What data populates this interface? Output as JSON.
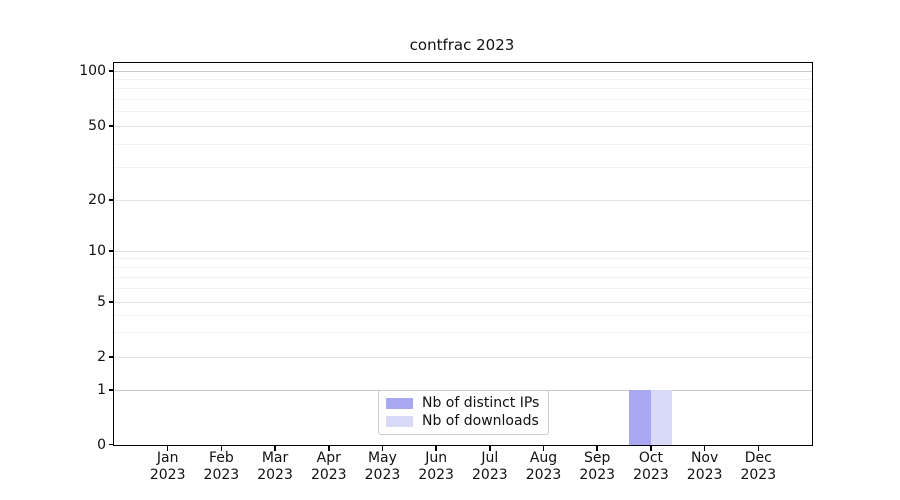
{
  "chart_data": {
    "type": "bar",
    "title": "contfrac 2023",
    "x": {
      "categories": [
        "Jan",
        "Feb",
        "Mar",
        "Apr",
        "May",
        "Jun",
        "Jul",
        "Aug",
        "Sep",
        "Oct",
        "Nov",
        "Dec"
      ],
      "year": "2023"
    },
    "y": {
      "scale": "symlog",
      "major_ticks": [
        0,
        1,
        2,
        5,
        10,
        20,
        50,
        100
      ],
      "minor_gridlines": [
        3,
        4,
        6,
        7,
        8,
        9,
        30,
        40,
        60,
        70,
        80,
        90
      ],
      "range": [
        0,
        100
      ]
    },
    "series": [
      {
        "name": "Nb of distinct IPs",
        "color": "#a8a8f2",
        "values": [
          0,
          0,
          0,
          0,
          0,
          0,
          0,
          0,
          0,
          1,
          0,
          0
        ]
      },
      {
        "name": "Nb of downloads",
        "color": "#d9d9f8",
        "values": [
          0,
          0,
          0,
          0,
          0,
          0,
          0,
          0,
          0,
          1,
          0,
          0
        ]
      }
    ],
    "legend": {
      "position": "bottom-center",
      "entries": [
        "Nb of distinct IPs",
        "Nb of downloads"
      ]
    },
    "grid": true
  },
  "colors": {
    "background": "#ffffff",
    "spine": "#000000",
    "grid_minor": "#f2f2f2",
    "grid_major": "#e4e4e4",
    "grid_boundary": "#c9c9c9",
    "text": "#111111",
    "legend_border": "#cccccc"
  }
}
